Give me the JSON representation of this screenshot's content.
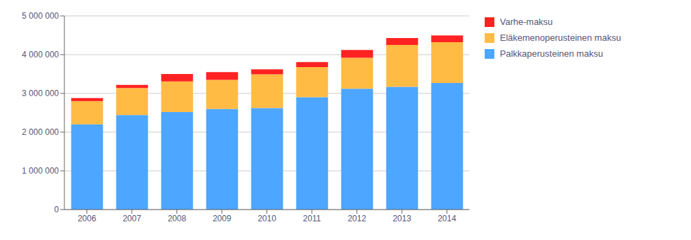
{
  "chart_data": {
    "type": "bar",
    "stacked": true,
    "categories": [
      "2006",
      "2007",
      "2008",
      "2009",
      "2010",
      "2011",
      "2012",
      "2013",
      "2014"
    ],
    "series": [
      {
        "name": "Palkkaperusteinen maksu",
        "color": "#4da6ff",
        "values": [
          2200000,
          2440000,
          2520000,
          2600000,
          2620000,
          2900000,
          3120000,
          3170000,
          3270000
        ]
      },
      {
        "name": "Eläkemenoperusteinen maksu",
        "color": "#ffbb44",
        "values": [
          600000,
          700000,
          790000,
          750000,
          870000,
          780000,
          800000,
          1080000,
          1050000
        ]
      },
      {
        "name": "Varhe-maksu",
        "color": "#ff2222",
        "values": [
          80000,
          80000,
          190000,
          200000,
          130000,
          130000,
          200000,
          180000,
          175000
        ]
      }
    ],
    "ylim": [
      0,
      5000000
    ],
    "yticks": [
      0,
      {
        "value": 1000000,
        "label": "1 000 000"
      },
      {
        "value": 2000000,
        "label": "2 000 000"
      },
      {
        "value": 3000000,
        "label": "3 000 000"
      },
      {
        "value": 4000000,
        "label": "4 000 000"
      },
      {
        "value": 5000000,
        "label": "5 000 000"
      }
    ],
    "grid": true,
    "legend": "upper right"
  }
}
